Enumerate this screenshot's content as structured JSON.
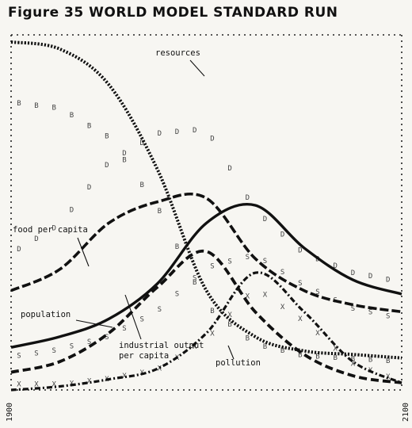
{
  "title": "Figure 35 WORLD MODEL STANDARD RUN",
  "chart_data": {
    "type": "line",
    "title": "Figure 35 WORLD MODEL STANDARD RUN",
    "x": [
      1900,
      1925,
      1950,
      1975,
      2000,
      2025,
      2050,
      2075,
      2100
    ],
    "xlim": [
      1900,
      2100
    ],
    "x_tick_labels": [
      "1900",
      "2100"
    ],
    "ylim": [
      0,
      100
    ],
    "series": [
      {
        "name": "resources",
        "values": [
          98,
          96,
          86,
          62,
          28,
          15,
          11,
          10,
          9
        ]
      },
      {
        "name": "food per capita",
        "values": [
          28,
          34,
          47,
          53,
          54,
          37,
          28,
          24,
          22
        ]
      },
      {
        "name": "population",
        "values": [
          12,
          15,
          20,
          30,
          47,
          52,
          40,
          31,
          27
        ]
      },
      {
        "name": "industrial output per capita",
        "values": [
          5,
          8,
          16,
          29,
          39,
          22,
          10,
          4,
          2
        ]
      },
      {
        "name": "pollution",
        "values": [
          0,
          1,
          3,
          6,
          16,
          33,
          22,
          8,
          2
        ]
      }
    ],
    "annotations": [
      "resources",
      "food per capita",
      "population",
      "industrial output per capita",
      "pollution"
    ],
    "grid": false,
    "legend": "none"
  }
}
